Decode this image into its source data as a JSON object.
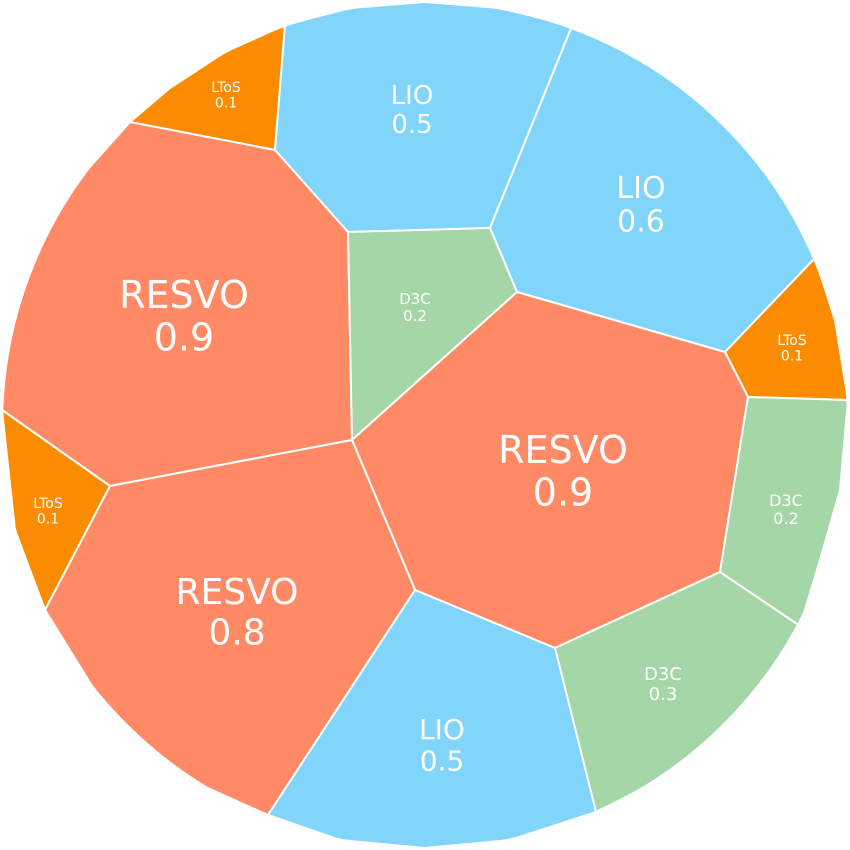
{
  "chart_data": {
    "type": "voronoi-treemap",
    "colors": {
      "RESVO": "#ff8a65",
      "LIO": "#81d4fa",
      "D3C": "#a5d6a7",
      "LToS": "#fb8c00"
    },
    "cells": [
      {
        "name": "LToS",
        "value": 0.1
      },
      {
        "name": "LIO",
        "value": 0.5
      },
      {
        "name": "LIO",
        "value": 0.6
      },
      {
        "name": "RESVO",
        "value": 0.9
      },
      {
        "name": "D3C",
        "value": 0.2
      },
      {
        "name": "LToS",
        "value": 0.1
      },
      {
        "name": "RESVO",
        "value": 0.9
      },
      {
        "name": "LToS",
        "value": 0.1
      },
      {
        "name": "D3C",
        "value": 0.2
      },
      {
        "name": "RESVO",
        "value": 0.8
      },
      {
        "name": "D3C",
        "value": 0.3
      },
      {
        "name": "LIO",
        "value": 0.5
      }
    ]
  }
}
